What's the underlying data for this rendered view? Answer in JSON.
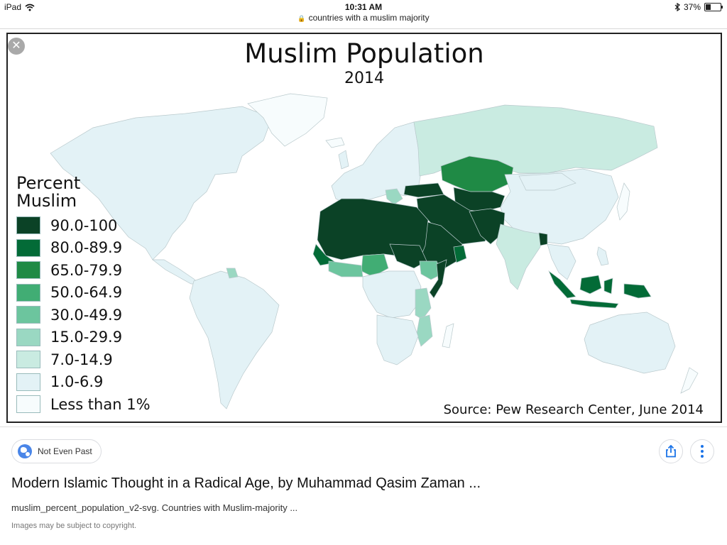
{
  "status_bar": {
    "device": "iPad",
    "time": "10:31 AM",
    "battery_percent": "37%",
    "battery_level": 0.37
  },
  "url_bar": {
    "text": "countries with a muslim majority"
  },
  "image": {
    "title": "Muslim Population",
    "subtitle": "2014",
    "legend_title_line1": "Percent",
    "legend_title_line2": "Muslim",
    "legend": [
      {
        "label": "90.0-100",
        "color": "#0b4226"
      },
      {
        "label": "80.0-89.9",
        "color": "#036b37"
      },
      {
        "label": "65.0-79.9",
        "color": "#1f8a45"
      },
      {
        "label": "50.0-64.9",
        "color": "#41ad74"
      },
      {
        "label": "30.0-49.9",
        "color": "#6cc59e"
      },
      {
        "label": "15.0-29.9",
        "color": "#9ad8c2"
      },
      {
        "label": "7.0-14.9",
        "color": "#c9ebe1"
      },
      {
        "label": "1.0-6.9",
        "color": "#e3f2f6"
      },
      {
        "label": "Less than 1%",
        "color": "#f7fcfd"
      }
    ],
    "source": "Source: Pew Research Center, June 2014"
  },
  "result": {
    "site_name": "Not Even Past",
    "title": "Modern Islamic Thought in a Radical Age, by Muhammad Qasim Zaman ...",
    "description": "muslim_percent_population_v2-svg. Countries with Muslim-majority ...",
    "copyright": "Images may be subject to copyright."
  }
}
